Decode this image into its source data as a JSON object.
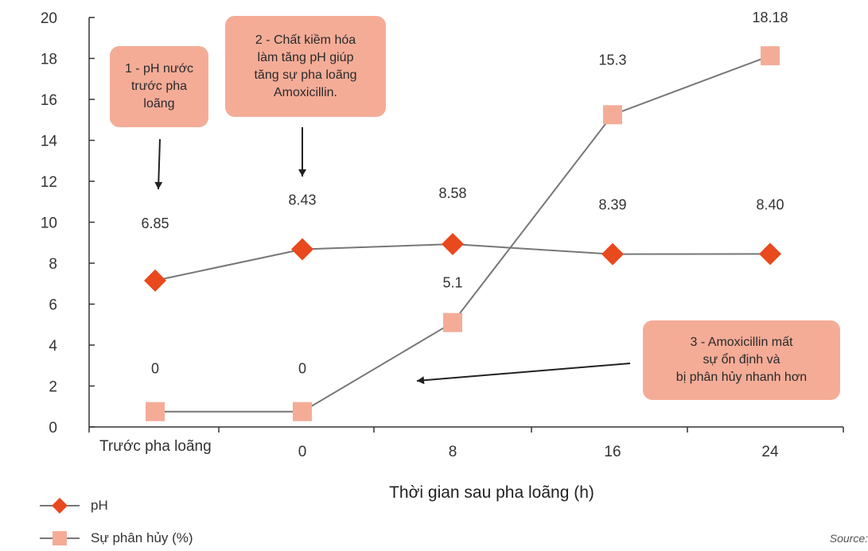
{
  "chart_data": {
    "type": "line",
    "categories": [
      "Trước pha loãng",
      "0",
      "8",
      "16",
      "24"
    ],
    "xlabel": "Thời gian sau pha loãng (h)",
    "ylim": [
      0,
      20
    ],
    "yticks": [
      0,
      2,
      4,
      6,
      8,
      10,
      12,
      14,
      16,
      18,
      20
    ],
    "series": [
      {
        "name": "pH",
        "values": [
          6.85,
          8.43,
          8.58,
          8.39,
          8.4
        ],
        "labels": [
          "6.85",
          "8.43",
          "8.58",
          "8.39",
          "8.40"
        ],
        "color": "#e8491d",
        "marker": "diamond"
      },
      {
        "name": "Sự phân hủy (%)",
        "values": [
          0,
          0,
          5.1,
          15.3,
          18.18
        ],
        "labels": [
          "0",
          "0",
          "5.1",
          "15.3",
          "18.18"
        ],
        "color": "#f4ac97",
        "marker": "square"
      }
    ],
    "annotations": [
      "1 - pH  nước\ntrước pha\nloãng",
      "2 - Chất kiềm hóa\nlàm tăng pH giúp\ntăng sự pha loãng\nAmoxicillin.",
      "3 -  Amoxicillin mất\nsự ổn định và\nbị phân hủy nhanh hơn"
    ],
    "line_color": "#777777"
  },
  "source_text": "Source:"
}
